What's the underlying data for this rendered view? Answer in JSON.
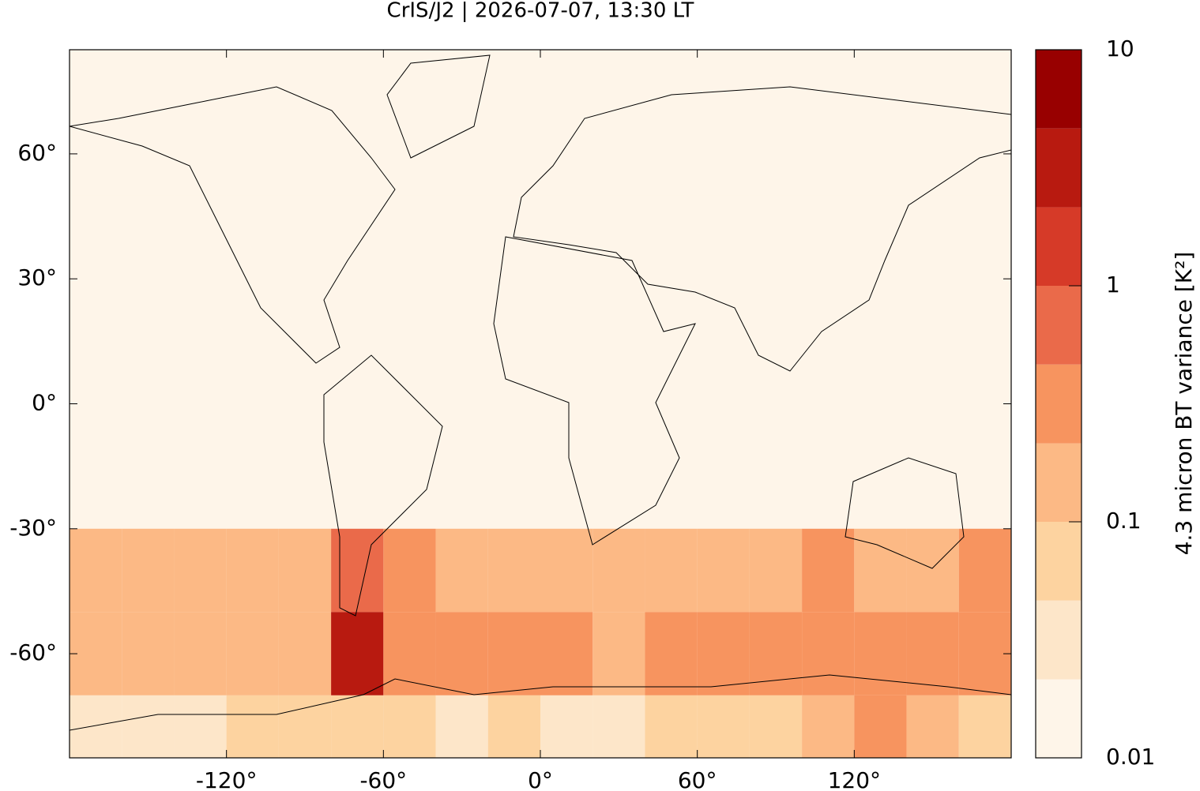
{
  "chart_data": {
    "type": "heatmap",
    "title": "CrIS/J2 | 2026-07-07, 13:30 LT",
    "x": [
      -170,
      -150,
      -130,
      -110,
      -90,
      -70,
      -50,
      -30,
      -10,
      10,
      30,
      50,
      70,
      90,
      110,
      130,
      150,
      170
    ],
    "y": [
      80,
      60,
      40,
      20,
      0,
      -20,
      -40,
      -60,
      -80
    ],
    "z": [
      [
        0.012,
        0.012,
        0.012,
        0.012,
        0.012,
        0.012,
        0.012,
        0.012,
        0.012,
        0.012,
        0.012,
        0.012,
        0.012,
        0.012,
        0.012,
        0.012,
        0.012,
        0.012
      ],
      [
        0.012,
        0.012,
        0.012,
        0.012,
        0.012,
        0.012,
        0.012,
        0.012,
        0.012,
        0.012,
        0.012,
        0.012,
        0.012,
        0.012,
        0.012,
        0.012,
        0.012,
        0.012
      ],
      [
        0.013,
        0.013,
        0.013,
        0.013,
        0.013,
        0.013,
        0.013,
        0.013,
        0.013,
        0.013,
        0.013,
        0.013,
        0.013,
        0.013,
        0.013,
        0.013,
        0.013,
        0.013
      ],
      [
        0.013,
        0.013,
        0.013,
        0.013,
        0.013,
        0.013,
        0.013,
        0.013,
        0.013,
        0.013,
        0.013,
        0.013,
        0.013,
        0.013,
        0.013,
        0.013,
        0.013,
        0.013
      ],
      [
        0.013,
        0.013,
        0.013,
        0.013,
        0.013,
        0.013,
        0.013,
        0.013,
        0.013,
        0.013,
        0.013,
        0.013,
        0.013,
        0.013,
        0.013,
        0.013,
        0.013,
        0.013
      ],
      [
        0.015,
        0.015,
        0.015,
        0.015,
        0.015,
        0.015,
        0.015,
        0.015,
        0.015,
        0.015,
        0.015,
        0.015,
        0.015,
        0.015,
        0.015,
        0.015,
        0.015,
        0.015
      ],
      [
        0.12,
        0.1,
        0.15,
        0.1,
        0.15,
        0.5,
        0.3,
        0.15,
        0.12,
        0.15,
        0.2,
        0.15,
        0.1,
        0.2,
        0.25,
        0.2,
        0.12,
        0.3
      ],
      [
        0.15,
        0.2,
        0.15,
        0.12,
        0.2,
        2.5,
        0.4,
        0.25,
        0.3,
        0.3,
        0.15,
        0.3,
        0.35,
        0.25,
        0.3,
        0.3,
        0.4,
        0.35
      ],
      [
        0.04,
        0.03,
        0.04,
        0.05,
        0.06,
        0.08,
        0.05,
        0.04,
        0.05,
        0.04,
        0.04,
        0.05,
        0.06,
        0.08,
        0.1,
        0.3,
        0.2,
        0.06
      ]
    ],
    "xlim": [
      -180,
      180
    ],
    "ylim": [
      -85,
      85
    ],
    "xticks": [
      {
        "value": -120,
        "label": "-120°"
      },
      {
        "value": -60,
        "label": "-60°"
      },
      {
        "value": 0,
        "label": "0°"
      },
      {
        "value": 60,
        "label": "60°"
      },
      {
        "value": 120,
        "label": "120°"
      }
    ],
    "yticks": [
      {
        "value": -60,
        "label": "-60°"
      },
      {
        "value": -30,
        "label": "-30°"
      },
      {
        "value": 0,
        "label": "0°"
      },
      {
        "value": 30,
        "label": "30°"
      },
      {
        "value": 60,
        "label": "60°"
      }
    ],
    "colorbar": {
      "label": "4.3 micron BT variance [K²]",
      "scale": "log",
      "lim": [
        0.01,
        10
      ],
      "ticks": [
        0.01,
        0.1,
        1,
        10
      ],
      "levels": [
        0.01,
        0.0215,
        0.0464,
        0.1,
        0.215,
        0.464,
        1,
        2.15,
        4.64,
        10
      ],
      "colors": [
        "#fef5e9",
        "#fde6c9",
        "#fdd3a0",
        "#fcb985",
        "#f7945f",
        "#ea6a4a",
        "#d63a28",
        "#b81a10",
        "#980000"
      ]
    }
  }
}
